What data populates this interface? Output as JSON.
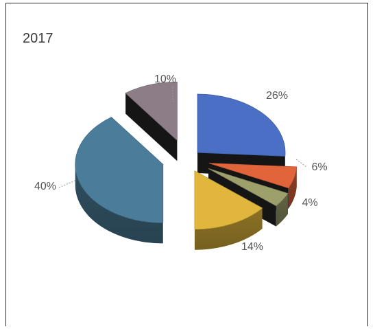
{
  "chart_data": {
    "type": "pie",
    "title": "2017",
    "slices": [
      {
        "label": "26%",
        "value": 26,
        "color": "#4a6fc4"
      },
      {
        "label": "6%",
        "value": 6,
        "color": "#e2643a"
      },
      {
        "label": "4%",
        "value": 4,
        "color": "#9ea06c"
      },
      {
        "label": "14%",
        "value": 14,
        "color": "#e0b73c"
      },
      {
        "label": "40%",
        "value": 40,
        "color": "#4b7d9a"
      },
      {
        "label": "10%",
        "value": 10,
        "color": "#8c7d86"
      }
    ],
    "legend": "none",
    "style": "3d-exploded"
  }
}
